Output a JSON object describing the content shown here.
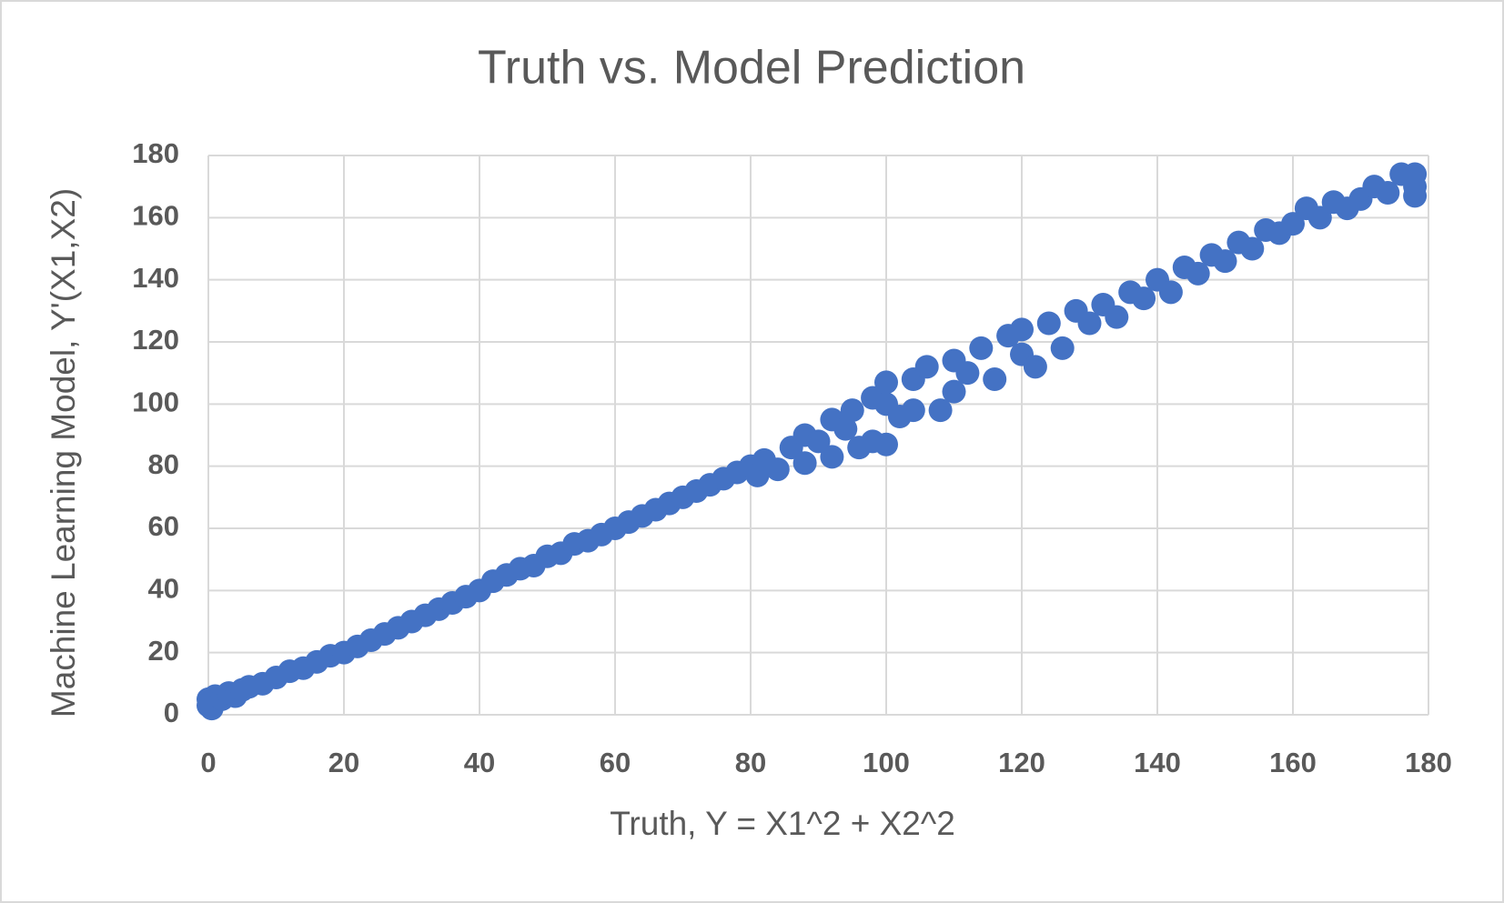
{
  "chart_data": {
    "type": "scatter",
    "title": "Truth vs. Model Prediction",
    "x_label": "Truth, Y = X1^2 + X2^2",
    "y_label": "Machine Learning Model, Y'(X1,X2)",
    "xlim": [
      0,
      180
    ],
    "ylim": [
      0,
      180
    ],
    "xticks": [
      0,
      20,
      40,
      60,
      80,
      100,
      120,
      140,
      160,
      180
    ],
    "yticks": [
      0,
      20,
      40,
      60,
      80,
      100,
      120,
      140,
      160,
      180
    ],
    "grid": true,
    "series": [
      {
        "color": "#4472c4",
        "x": [
          0,
          0,
          0.5,
          1,
          2,
          3,
          4,
          5,
          6,
          8,
          10,
          12,
          14,
          16,
          18,
          20,
          22,
          24,
          26,
          28,
          30,
          32,
          34,
          36,
          38,
          40,
          42,
          44,
          46,
          48,
          50,
          52,
          54,
          56,
          58,
          60,
          62,
          64,
          66,
          68,
          70,
          72,
          74,
          76,
          78,
          80,
          81,
          82,
          84,
          86,
          88,
          88,
          90,
          92,
          92,
          94,
          95,
          96,
          98,
          98,
          100,
          100,
          100,
          102,
          104,
          104,
          106,
          108,
          110,
          110,
          112,
          114,
          116,
          118,
          120,
          120,
          122,
          124,
          126,
          128,
          130,
          132,
          134,
          136,
          138,
          140,
          142,
          144,
          146,
          148,
          150,
          152,
          154,
          156,
          158,
          160,
          162,
          164,
          166,
          168,
          170,
          172,
          174,
          176,
          178,
          178,
          178
        ],
        "values": [
          3,
          5,
          2,
          6,
          5,
          7,
          6,
          8,
          9,
          10,
          12,
          14,
          15,
          17,
          19,
          20,
          22,
          24,
          26,
          28,
          30,
          32,
          34,
          36,
          38,
          40,
          43,
          45,
          47,
          48,
          51,
          52,
          55,
          56,
          58,
          60,
          62,
          64,
          66,
          68,
          70,
          72,
          74,
          76,
          78,
          80,
          77,
          82,
          79,
          86,
          90,
          81,
          88,
          95,
          83,
          92,
          98,
          86,
          102,
          88,
          100,
          107,
          87,
          96,
          108,
          98,
          112,
          98,
          114,
          104,
          110,
          118,
          108,
          122,
          116,
          124,
          112,
          126,
          118,
          130,
          126,
          132,
          128,
          136,
          134,
          140,
          136,
          144,
          142,
          148,
          146,
          152,
          150,
          156,
          155,
          158,
          163,
          160,
          165,
          163,
          166,
          170,
          168,
          174,
          170,
          167,
          174
        ]
      }
    ]
  }
}
